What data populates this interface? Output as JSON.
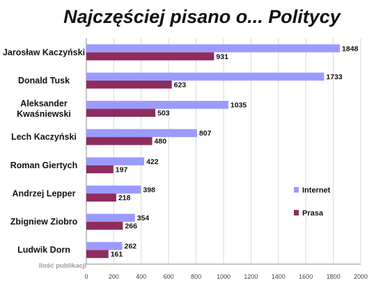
{
  "chart_data": {
    "type": "bar",
    "orientation": "horizontal",
    "title": "Najczęściej pisano o... Politycy",
    "xlabel": "Ilość publikacji",
    "ylabel": "",
    "categories": [
      [
        "Jarosław Kaczyński"
      ],
      [
        "Donald Tusk"
      ],
      [
        "Aleksander",
        "Kwaśniewski"
      ],
      [
        "Lech Kaczyński"
      ],
      [
        "Roman Giertych"
      ],
      [
        "Andrzej Lepper"
      ],
      [
        "Zbigniew Ziobro"
      ],
      [
        "Ludwik Dorn"
      ]
    ],
    "series": [
      {
        "name": "Internet",
        "color": "#9b9bff",
        "values": [
          1848,
          1733,
          1035,
          807,
          422,
          398,
          354,
          262
        ]
      },
      {
        "name": "Prasa",
        "color": "#8e2d5e",
        "values": [
          931,
          623,
          503,
          480,
          197,
          218,
          266,
          161
        ]
      }
    ],
    "xlim": [
      0,
      2000
    ],
    "xticks": [
      "0",
      "200",
      "400",
      "600",
      "800",
      "1000",
      "1200",
      "1400",
      "1600",
      "1800",
      "2000"
    ],
    "grid": true,
    "legend_position": "right"
  }
}
